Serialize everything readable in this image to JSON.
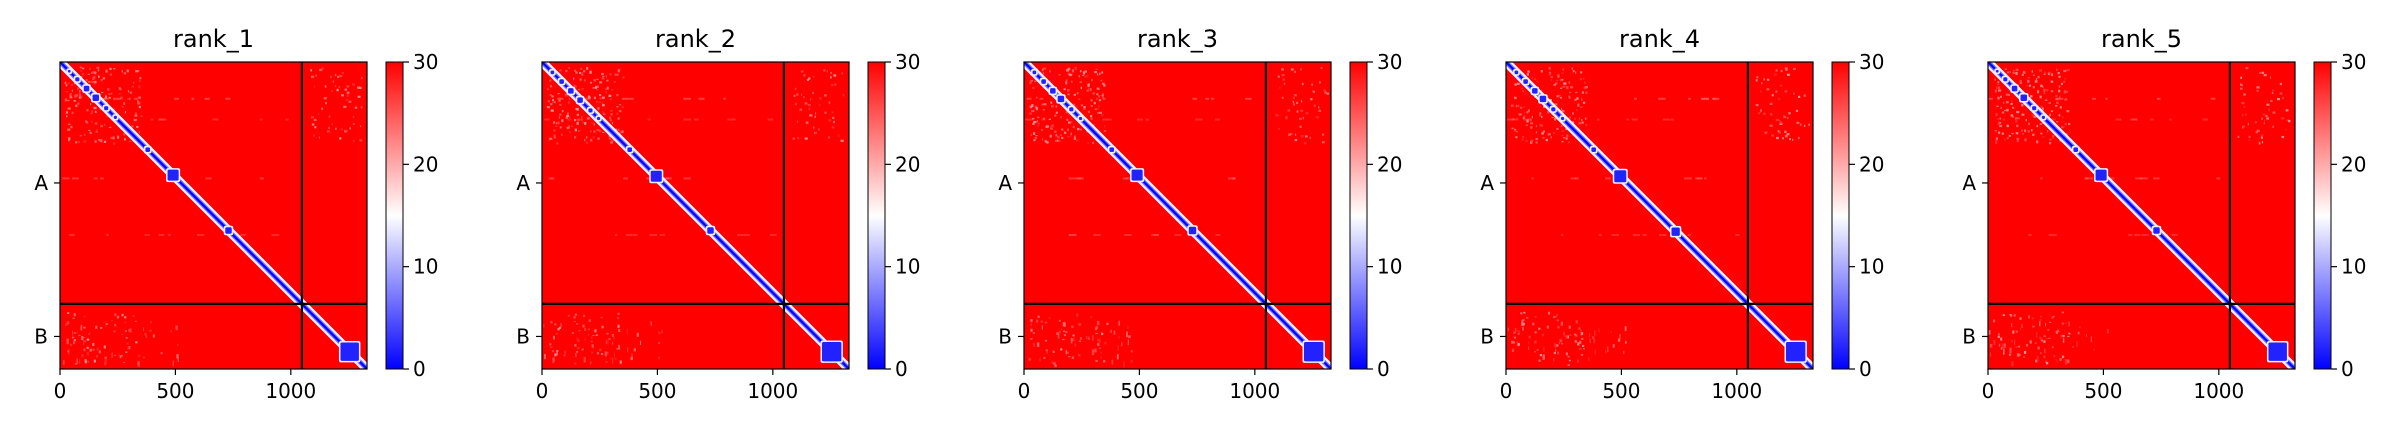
{
  "chart_data": {
    "type": "heatmap",
    "colormap": {
      "low": "#0000ff",
      "mid": "#ffffff",
      "high": "#ff0000"
    },
    "colorbar": {
      "vmin": 0,
      "vmax": 30,
      "ticks": [
        "0",
        "10",
        "20",
        "30"
      ]
    },
    "x_ticks": [
      0,
      500,
      1000
    ],
    "x_tick_labels": [
      "0",
      "500",
      "1000"
    ],
    "xlim": [
      0,
      1330
    ],
    "chain_boundary": 1048,
    "chains": [
      {
        "label": "A",
        "center": 524
      },
      {
        "label": "B",
        "center": 1189
      }
    ],
    "panels": [
      {
        "title": "rank_1",
        "diag_domains": [
          [
            40,
            6
          ],
          [
            75,
            9
          ],
          [
            115,
            12
          ],
          [
            155,
            14
          ],
          [
            200,
            9
          ],
          [
            240,
            7
          ],
          [
            380,
            10
          ],
          [
            490,
            24
          ],
          [
            730,
            14
          ],
          [
            1255,
            40
          ]
        ],
        "variant": 0
      },
      {
        "title": "rank_2",
        "diag_domains": [
          [
            45,
            8
          ],
          [
            85,
            10
          ],
          [
            125,
            12
          ],
          [
            165,
            12
          ],
          [
            210,
            9
          ],
          [
            245,
            7
          ],
          [
            380,
            10
          ],
          [
            495,
            24
          ],
          [
            730,
            14
          ],
          [
            1255,
            42
          ]
        ],
        "variant": 1
      },
      {
        "title": "rank_3",
        "diag_domains": [
          [
            45,
            8
          ],
          [
            85,
            10
          ],
          [
            125,
            12
          ],
          [
            160,
            14
          ],
          [
            205,
            9
          ],
          [
            245,
            7
          ],
          [
            380,
            10
          ],
          [
            490,
            24
          ],
          [
            730,
            16
          ],
          [
            1255,
            42
          ]
        ],
        "variant": 2
      },
      {
        "title": "rank_4",
        "diag_domains": [
          [
            45,
            8
          ],
          [
            85,
            10
          ],
          [
            125,
            12
          ],
          [
            160,
            14
          ],
          [
            205,
            9
          ],
          [
            245,
            7
          ],
          [
            380,
            10
          ],
          [
            495,
            26
          ],
          [
            735,
            18
          ],
          [
            1255,
            42
          ]
        ],
        "variant": 3
      },
      {
        "title": "rank_5",
        "diag_domains": [
          [
            40,
            6
          ],
          [
            75,
            9
          ],
          [
            115,
            12
          ],
          [
            155,
            14
          ],
          [
            200,
            9
          ],
          [
            240,
            7
          ],
          [
            380,
            10
          ],
          [
            490,
            24
          ],
          [
            730,
            14
          ],
          [
            1255,
            40
          ]
        ],
        "variant": 4
      }
    ]
  }
}
